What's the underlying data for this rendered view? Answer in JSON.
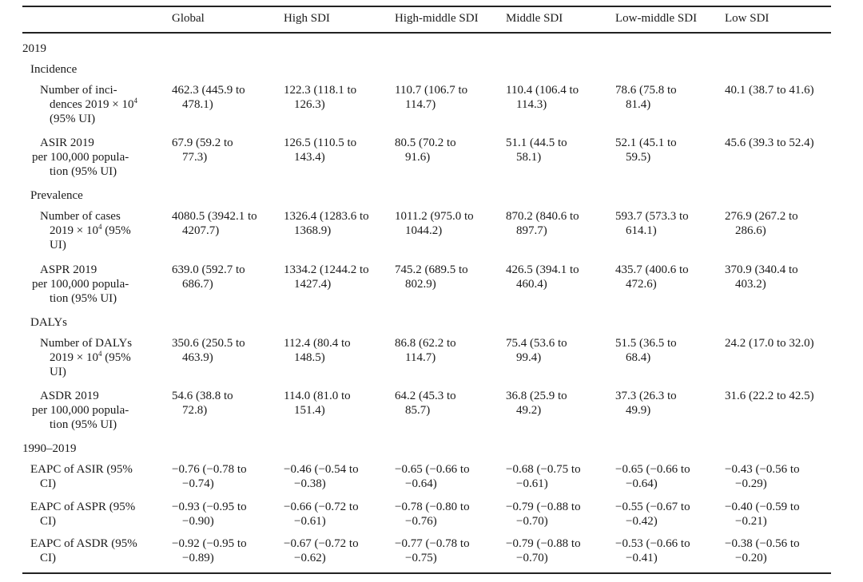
{
  "columns": [
    "Global",
    "High SDI",
    "High-middle SDI",
    "Middle SDI",
    "Low-middle SDI",
    "Low SDI"
  ],
  "sections": {
    "y2019": "2019",
    "incidence": "Incidence",
    "prevalence": "Prevalence",
    "dalys": "DALYs",
    "trend": "1990–2019"
  },
  "rows": {
    "inc_num": {
      "label": [
        "Number of inci-",
        "dences  2019 × 10",
        "(95% UI)"
      ],
      "sup": "4",
      "cells": [
        [
          "462.3 (445.9 to",
          "478.1)"
        ],
        [
          "122.3 (118.1 to",
          "126.3)"
        ],
        [
          "110.7 (106.7 to",
          "114.7)"
        ],
        [
          "110.4 (106.4 to",
          "114.3)"
        ],
        [
          "78.6 (75.8 to",
          "81.4)"
        ],
        [
          "40.1 (38.7 to 41.6)",
          ""
        ]
      ]
    },
    "asir": {
      "label": [
        "ASIR 2019",
        "per 100,000 popula-",
        "tion (95% UI)"
      ],
      "cells": [
        [
          "67.9 (59.2 to",
          "77.3)"
        ],
        [
          "126.5 (110.5 to",
          "143.4)"
        ],
        [
          "80.5 (70.2 to",
          "91.6)"
        ],
        [
          "51.1 (44.5 to",
          "58.1)"
        ],
        [
          "52.1 (45.1 to",
          "59.5)"
        ],
        [
          "45.6 (39.3 to 52.4)",
          ""
        ]
      ]
    },
    "prev_num": {
      "label": [
        "Number of cases",
        "2019 × 10",
        "UI)"
      ],
      "sup": "4",
      "label_tail": " (95%",
      "cells": [
        [
          "4080.5 (3942.1 to",
          "4207.7)"
        ],
        [
          "1326.4 (1283.6 to",
          "1368.9)"
        ],
        [
          "1011.2 (975.0 to",
          "1044.2)"
        ],
        [
          "870.2 (840.6 to",
          "897.7)"
        ],
        [
          "593.7 (573.3 to",
          "614.1)"
        ],
        [
          "276.9 (267.2 to",
          "286.6)"
        ]
      ]
    },
    "aspr": {
      "label": [
        "ASPR 2019",
        "per 100,000 popula-",
        "tion (95% UI)"
      ],
      "cells": [
        [
          "639.0 (592.7 to",
          "686.7)"
        ],
        [
          "1334.2 (1244.2 to",
          "1427.4)"
        ],
        [
          "745.2 (689.5 to",
          "802.9)"
        ],
        [
          "426.5 (394.1 to",
          "460.4)"
        ],
        [
          "435.7 (400.6 to",
          "472.6)"
        ],
        [
          "370.9 (340.4 to",
          "403.2)"
        ]
      ]
    },
    "daly_num": {
      "label": [
        "Number of DALYs",
        "2019 × 10",
        "UI)"
      ],
      "sup": "4",
      "label_tail": " (95%",
      "cells": [
        [
          "350.6 (250.5 to",
          "463.9)"
        ],
        [
          "112.4 (80.4 to",
          "148.5)"
        ],
        [
          "86.8 (62.2 to",
          "114.7)"
        ],
        [
          "75.4 (53.6 to",
          "99.4)"
        ],
        [
          "51.5 (36.5 to",
          "68.4)"
        ],
        [
          "24.2 (17.0 to 32.0)",
          ""
        ]
      ]
    },
    "asdr": {
      "label": [
        "ASDR 2019",
        "per 100,000 popula-",
        "tion (95% UI)"
      ],
      "cells": [
        [
          "54.6 (38.8 to",
          "72.8)"
        ],
        [
          "114.0 (81.0 to",
          "151.4)"
        ],
        [
          "64.2 (45.3 to",
          "85.7)"
        ],
        [
          "36.8 (25.9 to",
          "49.2)"
        ],
        [
          "37.3 (26.3 to",
          "49.9)"
        ],
        [
          "31.6 (22.2 to 42.5)",
          ""
        ]
      ]
    },
    "eapc_asir": {
      "label": [
        "EAPC of ASIR (95%",
        "CI)"
      ],
      "cells": [
        [
          "−0.76 (−0.78 to",
          "−0.74)"
        ],
        [
          "−0.46 (−0.54 to",
          "−0.38)"
        ],
        [
          "−0.65 (−0.66 to",
          "−0.64)"
        ],
        [
          "−0.68 (−0.75 to",
          "−0.61)"
        ],
        [
          "−0.65 (−0.66 to",
          "−0.64)"
        ],
        [
          "−0.43 (−0.56 to",
          "−0.29)"
        ]
      ]
    },
    "eapc_aspr": {
      "label": [
        "EAPC of ASPR (95%",
        "CI)"
      ],
      "cells": [
        [
          "−0.93 (−0.95 to",
          "−0.90)"
        ],
        [
          "−0.66 (−0.72 to",
          "−0.61)"
        ],
        [
          "−0.78 (−0.80 to",
          "−0.76)"
        ],
        [
          "−0.79 (−0.88 to",
          "−0.70)"
        ],
        [
          "−0.55 (−0.67 to",
          "−0.42)"
        ],
        [
          "−0.40 (−0.59 to",
          "−0.21)"
        ]
      ]
    },
    "eapc_asdr": {
      "label": [
        "EAPC of ASDR (95%",
        "CI)"
      ],
      "cells": [
        [
          "−0.92 (−0.95 to",
          "−0.89)"
        ],
        [
          "−0.67 (−0.72 to",
          "−0.62)"
        ],
        [
          "−0.77 (−0.78 to",
          "−0.75)"
        ],
        [
          "−0.79 (−0.88 to",
          "−0.70)"
        ],
        [
          "−0.53 (−0.66 to",
          "−0.41)"
        ],
        [
          "−0.38 (−0.56 to",
          "−0.20)"
        ]
      ]
    }
  }
}
